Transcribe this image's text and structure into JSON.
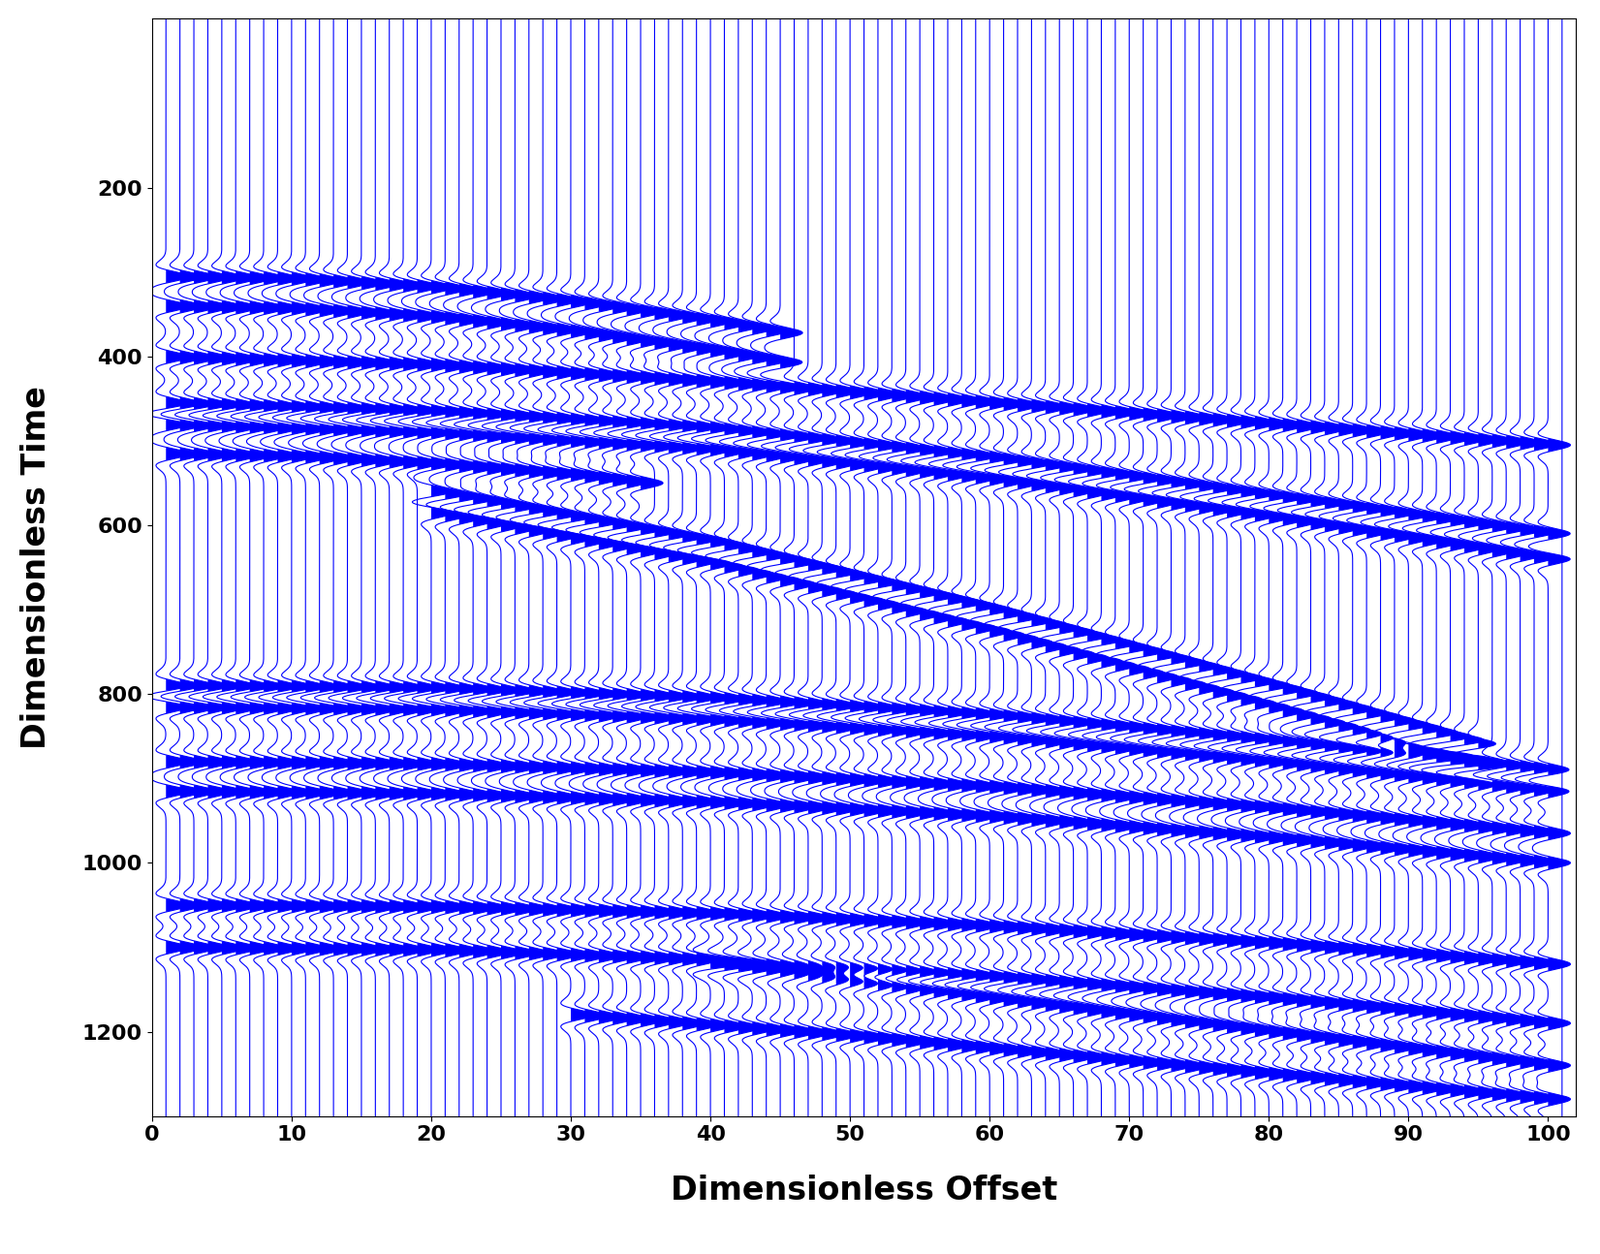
{
  "chart_data": {
    "type": "wiggle",
    "xlabel": "Dimensionless Offset",
    "ylabel": "Dimensionless Time",
    "color": "#0000ff",
    "xlim": [
      0,
      102
    ],
    "ylim": [
      1300,
      0
    ],
    "xticks": [
      0,
      10,
      20,
      30,
      40,
      50,
      60,
      70,
      80,
      90,
      100
    ],
    "yticks": [
      200,
      400,
      600,
      800,
      1000,
      1200
    ],
    "x": [
      1,
      2,
      3,
      4,
      5,
      6,
      7,
      8,
      9,
      10,
      11,
      12,
      13,
      14,
      15,
      16,
      17,
      18,
      19,
      20,
      21,
      22,
      23,
      24,
      25,
      26,
      27,
      28,
      29,
      30,
      31,
      32,
      33,
      34,
      35,
      36,
      37,
      38,
      39,
      40,
      41,
      42,
      43,
      44,
      45,
      46,
      47,
      48,
      49,
      50,
      51,
      52,
      53,
      54,
      55,
      56,
      57,
      58,
      59,
      60,
      61,
      62,
      63,
      64,
      65,
      66,
      67,
      68,
      69,
      70,
      71,
      72,
      73,
      74,
      75,
      76,
      77,
      78,
      79,
      80,
      81,
      82,
      83,
      84,
      85,
      86,
      87,
      88,
      89,
      90,
      91,
      92,
      93,
      94,
      95,
      96,
      97,
      98,
      99,
      100,
      101
    ],
    "events": [
      {
        "x": [
          0,
          10,
          20,
          30,
          40,
          45
        ],
        "values": [
          305,
          308,
          318,
          335,
          358,
          372
        ]
      },
      {
        "x": [
          0,
          10,
          20,
          30,
          40,
          45
        ],
        "values": [
          340,
          343,
          353,
          370,
          393,
          407
        ]
      },
      {
        "x": [
          0,
          20,
          40,
          60,
          80,
          100
        ],
        "values": [
          400,
          410,
          430,
          455,
          480,
          505
        ]
      },
      {
        "x": [
          0,
          20,
          40,
          60,
          80,
          100
        ],
        "values": [
          455,
          465,
          485,
          520,
          565,
          610
        ]
      },
      {
        "x": [
          0,
          20,
          40,
          60,
          80,
          100
        ],
        "values": [
          480,
          490,
          510,
          545,
          590,
          640
        ]
      },
      {
        "x": [
          0,
          10,
          20,
          30,
          35
        ],
        "values": [
          515,
          518,
          527,
          540,
          550
        ]
      },
      {
        "x": [
          20,
          40,
          60,
          80,
          95
        ],
        "values": [
          560,
          620,
          700,
          790,
          860
        ]
      },
      {
        "x": [
          20,
          40,
          60,
          80,
          95
        ],
        "values": [
          585,
          645,
          725,
          815,
          885
        ]
      },
      {
        "x": [
          0,
          20,
          40,
          60,
          80,
          100
        ],
        "values": [
          790,
          793,
          805,
          825,
          855,
          890
        ]
      },
      {
        "x": [
          0,
          20,
          40,
          60,
          80,
          100
        ],
        "values": [
          815,
          818,
          830,
          850,
          880,
          915
        ]
      },
      {
        "x": [
          0,
          20,
          40,
          60,
          80,
          100
        ],
        "values": [
          880,
          883,
          893,
          910,
          935,
          965
        ]
      },
      {
        "x": [
          0,
          20,
          40,
          60,
          80,
          100
        ],
        "values": [
          915,
          918,
          928,
          945,
          970,
          1000
        ]
      },
      {
        "x": [
          0,
          20,
          40,
          60,
          80,
          100
        ],
        "values": [
          1050,
          1052,
          1060,
          1075,
          1095,
          1120
        ]
      },
      {
        "x": [
          0,
          20,
          40,
          60,
          80,
          100
        ],
        "values": [
          1100,
          1103,
          1115,
          1135,
          1160,
          1190
        ]
      },
      {
        "x": [
          40,
          60,
          80,
          100
        ],
        "values": [
          1120,
          1160,
          1200,
          1240
        ]
      },
      {
        "x": [
          30,
          50,
          70,
          90,
          100
        ],
        "values": [
          1180,
          1205,
          1235,
          1265,
          1280
        ]
      }
    ]
  }
}
